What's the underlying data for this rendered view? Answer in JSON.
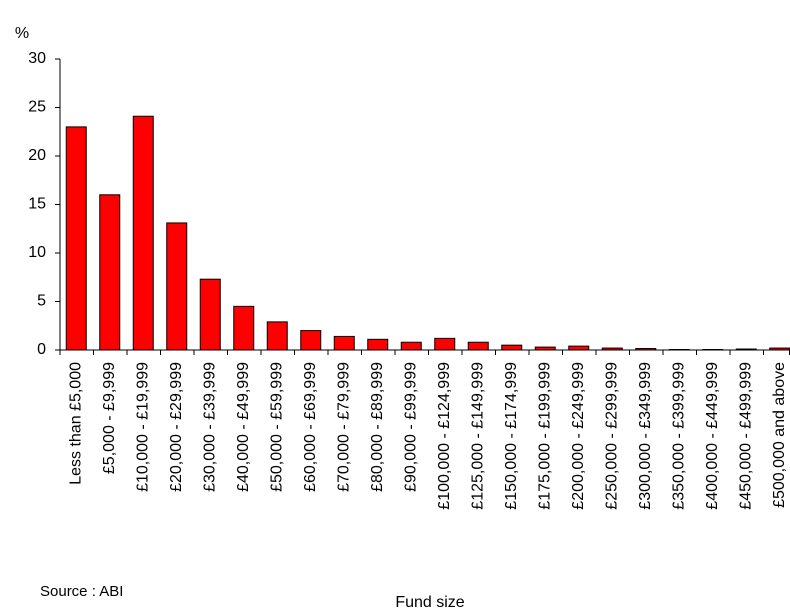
{
  "chart_data": {
    "type": "bar",
    "y_label": "%",
    "x_label": "Fund size",
    "source": "Source : ABI",
    "categories": [
      "Less than £5,000",
      "£5,000 - £9,999",
      "£10,000 - £19,999",
      "£20,000 - £29,999",
      "£30,000 - £39,999",
      "£40,000 - £49,999",
      "£50,000 - £59,999",
      "£60,000 - £69,999",
      "£70,000 - £79,999",
      "£80,000 - £89,999",
      "£90,000 - £99,999",
      "£100,000 - £124,999",
      "£125,000 - £149,999",
      "£150,000 - £174,999",
      "£175,000 - £199,999",
      "£200,000 - £249,999",
      "£250,000 - £299,999",
      "£300,000 - £349,999",
      "£350,000 - £399,999",
      "£400,000 - £449,999",
      "£450,000 - £499,999",
      "£500,000 and above"
    ],
    "values": [
      23,
      16,
      24.1,
      13.1,
      7.3,
      4.5,
      2.9,
      2.0,
      1.4,
      1.1,
      0.8,
      1.2,
      0.8,
      0.5,
      0.3,
      0.4,
      0.2,
      0.15,
      0.05,
      0.05,
      0.1,
      0.2
    ],
    "color": "#ff0000",
    "ylim": [
      0,
      30
    ],
    "yticks": [
      0,
      5,
      10,
      15,
      20,
      25,
      30
    ]
  }
}
